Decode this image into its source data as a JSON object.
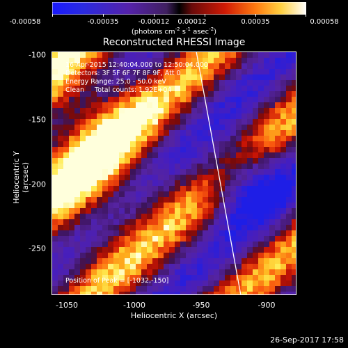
{
  "colorbar": {
    "ticks": [
      "-0.00058",
      "-0.00035",
      "-0.00012",
      "0.00012",
      "0.00035",
      "0.00058"
    ],
    "units_prefix": "(photons cm",
    "units_mid": "s",
    "units_mid2": "asec",
    "units_suffix": ")",
    "exp1": "-2",
    "exp2": "-1",
    "exp3": "-2"
  },
  "title": "Reconstructed RHESSI Image",
  "info": {
    "line1": "16-Apr-2015 12:40:04.000 to 12:50:04.000",
    "line2": "Detectors: 3F 5F 6F 7F 8F 9F, Att 0",
    "line3": "Energy Range: 25.0 - 50.0 keV",
    "line4": "Clean     Total counts: 1.92E+04"
  },
  "peak": "Position of Peak = [-1032,-150]",
  "yaxis": {
    "label": "Heliocentric Y (arcsec)",
    "ticks": [
      "-100",
      "-150",
      "-200",
      "-250"
    ]
  },
  "xaxis": {
    "label": "Heliocentric X (arcsec)",
    "ticks": [
      "-1050",
      "-1000",
      "-950",
      "-900"
    ]
  },
  "timestamp": "26-Sep-2017 17:58"
}
